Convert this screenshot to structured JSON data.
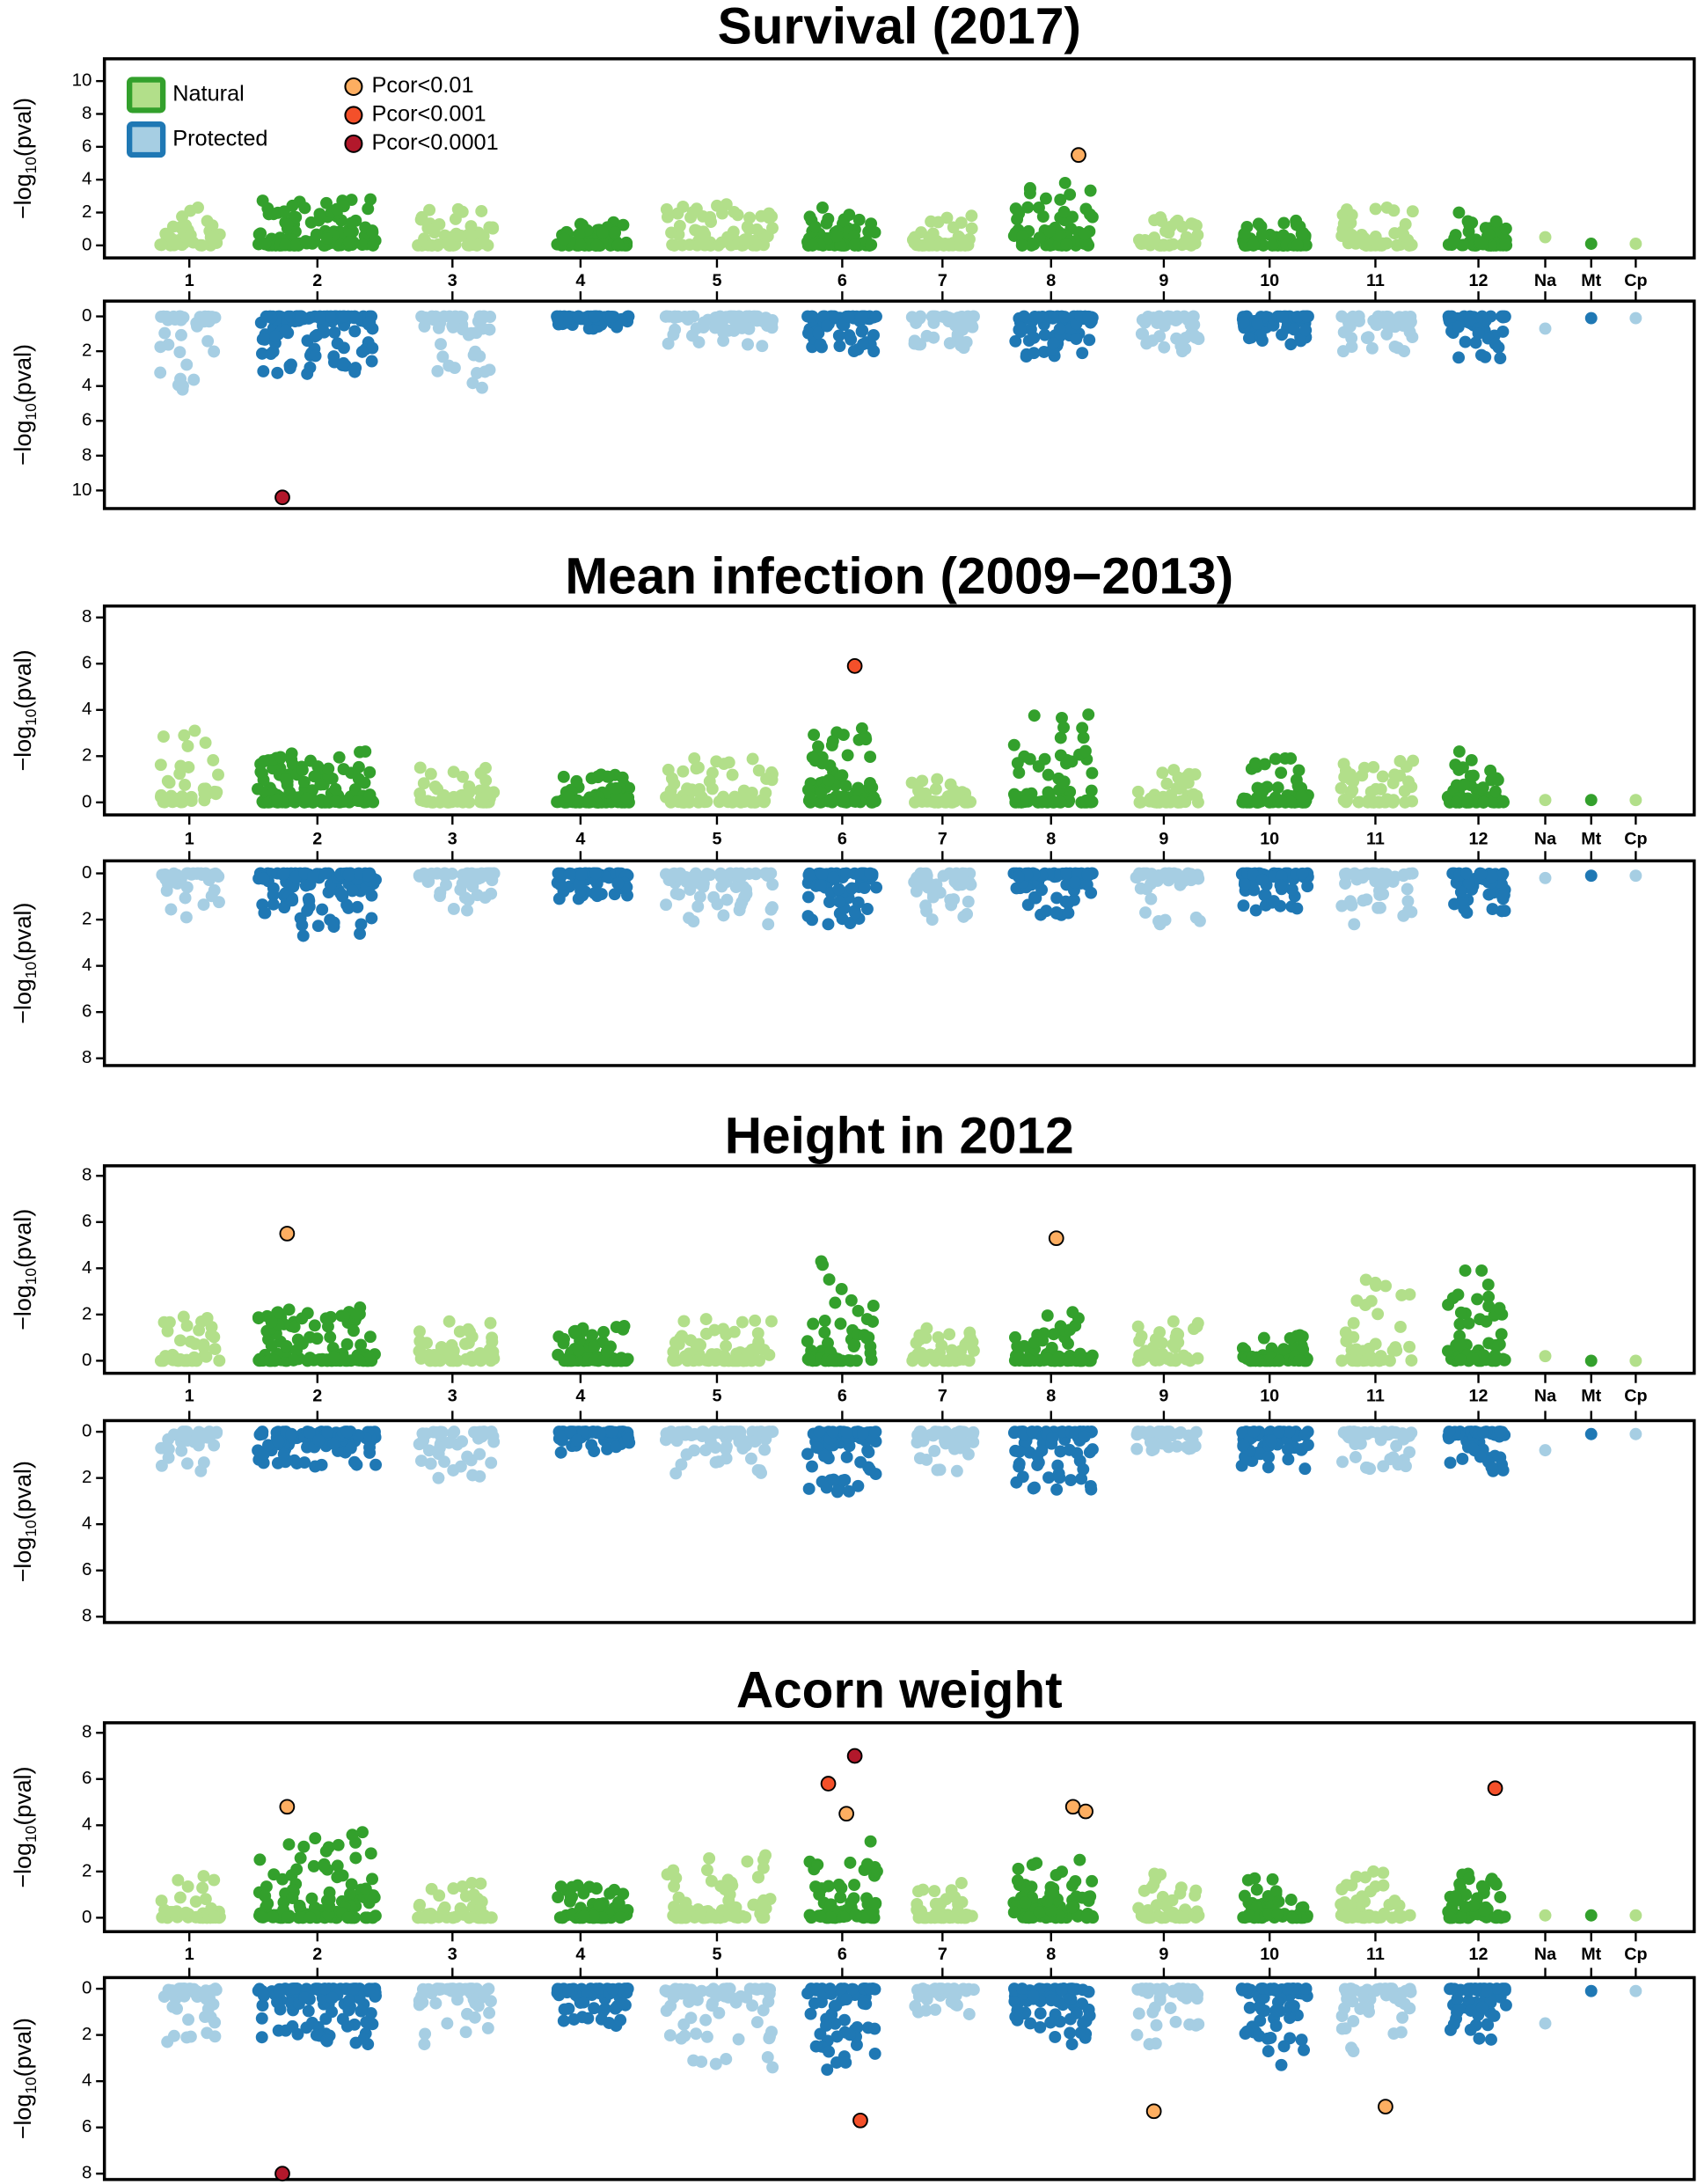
{
  "colors": {
    "natural_dark": "#33a02c",
    "natural_light": "#b2df8a",
    "protected_dark": "#1f78b4",
    "protected_light": "#a6cee3",
    "pcor_0.01": "#fdae61",
    "pcor_0.001": "#f4502a",
    "pcor_0.0001": "#b2182b"
  },
  "legend": {
    "groups": [
      "Natural",
      "Protected"
    ],
    "significance": [
      {
        "label": "Pcor<0.01",
        "key": "pcor_0.01"
      },
      {
        "label": "Pcor<0.001",
        "key": "pcor_0.001"
      },
      {
        "label": "Pcor<0.0001",
        "key": "pcor_0.0001"
      }
    ]
  },
  "ylabel": {
    "pre": "−log",
    "sub": "10",
    "post": "(pval)"
  },
  "chart_data": [
    {
      "type": "scatter",
      "title": "Survival (2017)",
      "chromosomes": [
        "1",
        "2",
        "3",
        "4",
        "5",
        "6",
        "7",
        "8",
        "9",
        "10",
        "11",
        "12",
        "Na",
        "Mt",
        "Cp"
      ],
      "natural": {
        "ylim": [
          0,
          11
        ],
        "ticks": [
          0,
          2,
          4,
          6,
          8,
          10
        ],
        "chrom_max": [
          2.3,
          2.8,
          2.2,
          1.4,
          2.5,
          2.3,
          1.8,
          3.8,
          1.7,
          1.5,
          2.3,
          2.0,
          0.5,
          0.1,
          0.1
        ],
        "significant": [
          {
            "chr": "8",
            "pos": 0.82,
            "value": 5.5,
            "level": "pcor_0.01"
          }
        ]
      },
      "protected": {
        "ylim": [
          0,
          11
        ],
        "ticks": [
          0,
          2,
          4,
          6,
          8,
          10
        ],
        "chrom_max": [
          4.2,
          3.3,
          4.1,
          0.7,
          1.7,
          2.0,
          1.8,
          2.3,
          2.0,
          1.6,
          2.0,
          2.4,
          0.7,
          0.1,
          0.1
        ],
        "significant": [
          {
            "chr": "2",
            "pos": 0.21,
            "value": 10.4,
            "level": "pcor_0.0001"
          }
        ]
      }
    },
    {
      "type": "scatter",
      "title": "Mean infection (2009−2013)",
      "chromosomes": [
        "1",
        "2",
        "3",
        "4",
        "5",
        "6",
        "7",
        "8",
        "9",
        "10",
        "11",
        "12",
        "Na",
        "Mt",
        "Cp"
      ],
      "natural": {
        "ylim": [
          0,
          8.5
        ],
        "ticks": [
          0,
          2,
          4,
          6,
          8
        ],
        "chrom_max": [
          3.1,
          2.2,
          1.5,
          1.2,
          1.9,
          3.2,
          1.0,
          3.8,
          1.4,
          1.9,
          1.8,
          2.2,
          0.1,
          0.1,
          0.1
        ],
        "significant": [
          {
            "chr": "6",
            "pos": 0.68,
            "value": 5.9,
            "level": "pcor_0.001"
          }
        ]
      },
      "protected": {
        "ylim": [
          0,
          8.5
        ],
        "ticks": [
          0,
          2,
          4,
          6,
          8
        ],
        "chrom_max": [
          1.9,
          2.7,
          1.6,
          1.1,
          2.2,
          2.2,
          2.0,
          1.8,
          2.2,
          1.6,
          2.2,
          1.7,
          0.2,
          0.1,
          0.1
        ],
        "significant": []
      }
    },
    {
      "type": "scatter",
      "title": "Height in 2012",
      "chromosomes": [
        "1",
        "2",
        "3",
        "4",
        "5",
        "6",
        "7",
        "8",
        "9",
        "10",
        "11",
        "12",
        "Na",
        "Mt",
        "Cp"
      ],
      "natural": {
        "ylim": [
          0,
          8.5
        ],
        "ticks": [
          0,
          2,
          4,
          6,
          8
        ],
        "chrom_max": [
          1.9,
          2.3,
          1.7,
          1.5,
          1.8,
          4.3,
          1.4,
          2.1,
          1.7,
          1.1,
          3.5,
          3.9,
          0.2,
          0.0,
          0.0
        ],
        "significant": [
          {
            "chr": "2",
            "pos": 0.25,
            "value": 5.5,
            "level": "pcor_0.01"
          },
          {
            "chr": "8",
            "pos": 0.54,
            "value": 5.3,
            "level": "pcor_0.01"
          }
        ]
      },
      "protected": {
        "ylim": [
          0,
          8.5
        ],
        "ticks": [
          0,
          2,
          4,
          6,
          8
        ],
        "chrom_max": [
          1.7,
          1.5,
          2.0,
          0.9,
          1.8,
          2.6,
          1.7,
          2.5,
          0.8,
          1.6,
          1.6,
          1.7,
          0.8,
          0.1,
          0.1
        ],
        "significant": []
      }
    },
    {
      "type": "scatter",
      "title": "Acorn weight",
      "chromosomes": [
        "1",
        "2",
        "3",
        "4",
        "5",
        "6",
        "7",
        "8",
        "9",
        "10",
        "11",
        "12",
        "Na",
        "Mt",
        "Cp"
      ],
      "natural": {
        "ylim": [
          0,
          8.5
        ],
        "ticks": [
          0,
          2,
          4,
          6,
          8
        ],
        "chrom_max": [
          1.8,
          3.7,
          1.5,
          1.4,
          2.7,
          3.3,
          1.5,
          2.5,
          1.9,
          1.7,
          2.0,
          1.9,
          0.1,
          0.1,
          0.1
        ],
        "significant": [
          {
            "chr": "2",
            "pos": 0.25,
            "value": 4.8,
            "level": "pcor_0.01"
          },
          {
            "chr": "6",
            "pos": 0.3,
            "value": 5.8,
            "level": "pcor_0.001"
          },
          {
            "chr": "6",
            "pos": 0.68,
            "value": 7.0,
            "level": "pcor_0.0001"
          },
          {
            "chr": "6",
            "pos": 0.56,
            "value": 4.5,
            "level": "pcor_0.01"
          },
          {
            "chr": "8",
            "pos": 0.75,
            "value": 4.8,
            "level": "pcor_0.01"
          },
          {
            "chr": "8",
            "pos": 0.91,
            "value": 4.6,
            "level": "pcor_0.01"
          },
          {
            "chr": "12",
            "pos": 0.81,
            "value": 5.6,
            "level": "pcor_0.001"
          }
        ]
      },
      "protected": {
        "ylim": [
          0,
          8.5
        ],
        "ticks": [
          0,
          2,
          4,
          6,
          8
        ],
        "chrom_max": [
          2.3,
          2.4,
          2.4,
          1.6,
          3.4,
          3.5,
          1.1,
          2.4,
          2.4,
          3.3,
          2.7,
          2.2,
          1.5,
          0.1,
          0.1
        ],
        "significant": [
          {
            "chr": "2",
            "pos": 0.21,
            "value": 8.0,
            "level": "pcor_0.0001"
          },
          {
            "chr": "6",
            "pos": 0.76,
            "value": 5.7,
            "level": "pcor_0.001"
          },
          {
            "chr": "9",
            "pos": 0.28,
            "value": 5.3,
            "level": "pcor_0.01"
          },
          {
            "chr": "11",
            "pos": 0.62,
            "value": 5.1,
            "level": "pcor_0.01"
          }
        ]
      }
    }
  ]
}
